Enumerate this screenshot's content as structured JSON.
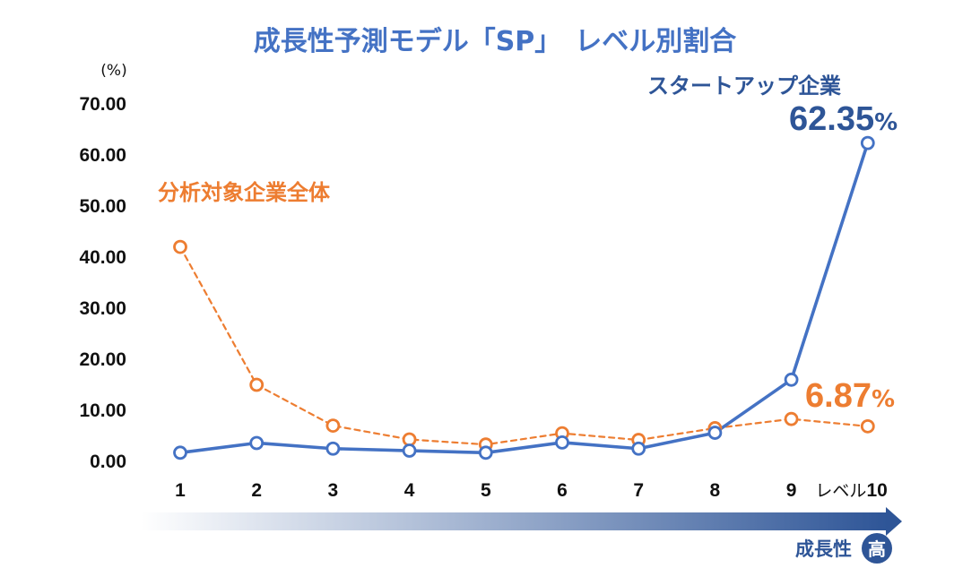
{
  "chart_data": {
    "type": "line",
    "title": "成長性予測モデル「SP」　レベル別割合",
    "ylabel": "(%)",
    "ylim": [
      0,
      70
    ],
    "yticks": [
      "70.00",
      "60.00",
      "50.00",
      "40.00",
      "30.00",
      "20.00",
      "10.00",
      "0.00"
    ],
    "categories": [
      "1",
      "2",
      "3",
      "4",
      "5",
      "6",
      "7",
      "8",
      "9",
      "10"
    ],
    "x_prefix_last": "レベル",
    "series": [
      {
        "name": "分析対象企業全体",
        "color": "#ED7D31",
        "style": "dashed",
        "values": [
          42.0,
          15.0,
          7.0,
          4.3,
          3.3,
          5.5,
          4.2,
          6.5,
          8.3,
          6.87
        ]
      },
      {
        "name": "スタートアップ企業",
        "color": "#4472C4",
        "style": "solid",
        "values": [
          1.7,
          3.6,
          2.5,
          2.1,
          1.7,
          3.7,
          2.5,
          5.6,
          16.0,
          62.35
        ]
      }
    ],
    "annotations": [
      {
        "series": "スタートアップ企業",
        "value": "62.35",
        "unit": "%"
      },
      {
        "series": "分析対象企業全体",
        "value": "6.87",
        "unit": "%"
      }
    ],
    "arrow_label": "成長性",
    "arrow_badge": "高",
    "grid": false
  },
  "colors": {
    "title": "#4472C4",
    "startup": "#4472C4",
    "overall": "#ED7D31",
    "arrow_start": "#ffffff",
    "arrow_end": "#2E5597"
  }
}
